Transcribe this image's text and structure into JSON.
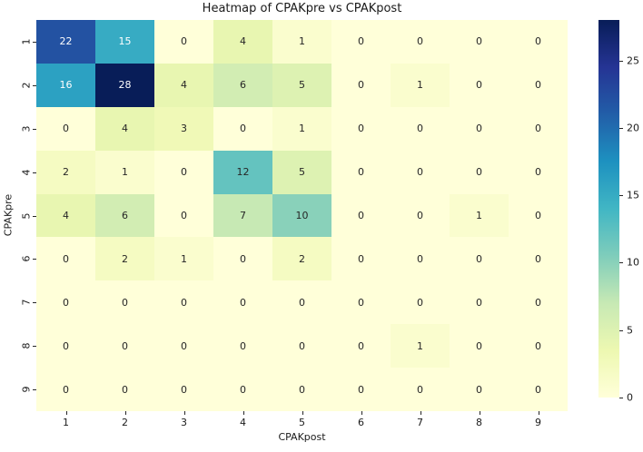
{
  "chart_data": {
    "type": "heatmap",
    "title": "Heatmap of CPAKpre vs CPAKpost",
    "xlabel": "CPAKpost",
    "ylabel": "CPAKpre",
    "x_tick_labels": [
      "1",
      "2",
      "3",
      "4",
      "5",
      "6",
      "7",
      "8",
      "9"
    ],
    "y_tick_labels": [
      "1",
      "2",
      "3",
      "4",
      "5",
      "6",
      "7",
      "8",
      "9"
    ],
    "values": [
      [
        22,
        15,
        0,
        4,
        1,
        0,
        0,
        0,
        0
      ],
      [
        16,
        28,
        4,
        6,
        5,
        0,
        1,
        0,
        0
      ],
      [
        0,
        4,
        3,
        0,
        1,
        0,
        0,
        0,
        0
      ],
      [
        2,
        1,
        0,
        12,
        5,
        0,
        0,
        0,
        0
      ],
      [
        4,
        6,
        0,
        7,
        10,
        0,
        0,
        1,
        0
      ],
      [
        0,
        2,
        1,
        0,
        2,
        0,
        0,
        0,
        0
      ],
      [
        0,
        0,
        0,
        0,
        0,
        0,
        0,
        0,
        0
      ],
      [
        0,
        0,
        0,
        0,
        0,
        0,
        1,
        0,
        0
      ],
      [
        0,
        0,
        0,
        0,
        0,
        0,
        0,
        0,
        0
      ]
    ],
    "vmin": 0,
    "vmax": 28,
    "grid": false,
    "legend": "colorbar-right",
    "colorbar_ticks": [
      0,
      5,
      10,
      15,
      20,
      25
    ],
    "colormap": {
      "name": "YlGnBu",
      "anchors": [
        "#ffffd9",
        "#edf8b1",
        "#c7e9b4",
        "#7fcdbb",
        "#41b6c4",
        "#1d91c0",
        "#225ea8",
        "#253494",
        "#081d58"
      ]
    },
    "annotation_text_colors": {
      "on_dark": "#ffffff",
      "on_light": "#262626"
    },
    "background_color": "#ffffff"
  }
}
